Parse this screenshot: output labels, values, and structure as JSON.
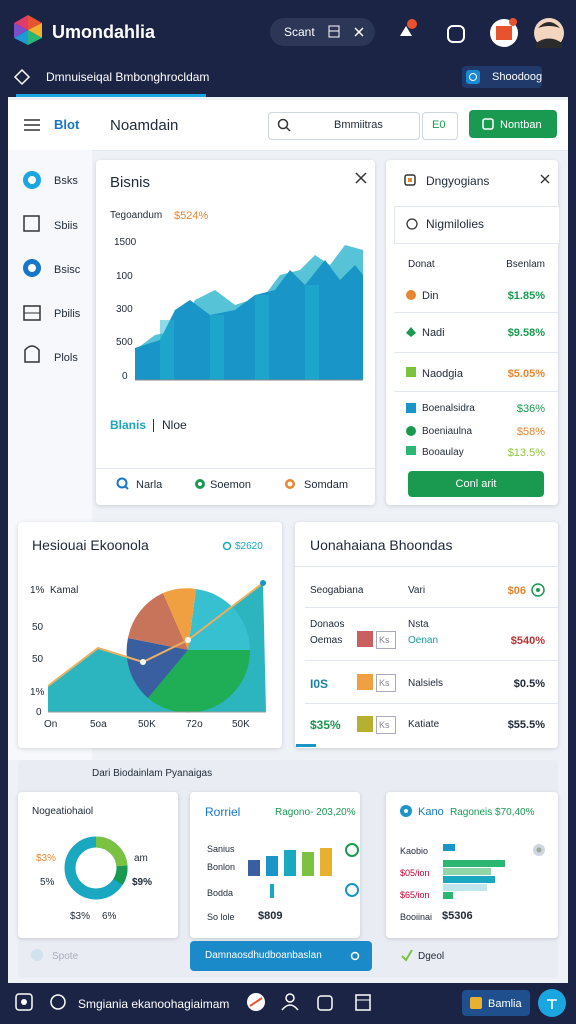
{
  "header": {
    "app_title": "Umondahlia",
    "search": "Scant"
  },
  "breadcrumb": {
    "text": "Dmnuiseiqal Bmbonghrocldam",
    "button": "Shoodoog"
  },
  "sidebar": {
    "title": "Blot",
    "items": [
      "Bsks",
      "Sbiis",
      "Bsisc",
      "Pbilis",
      "Plols"
    ]
  },
  "toolbar": {
    "page_title": "Noamdain",
    "search": "Bmmiitras",
    "count_button": "E0",
    "action_button": "Nontban"
  },
  "chart_card": {
    "title": "Bisnis",
    "subtitle_label": "Tegoandum",
    "subtitle_value": "$524%",
    "y_labels": [
      "1500",
      "100",
      "300",
      "500",
      "0"
    ],
    "legend": [
      "Blanis",
      "Nloe"
    ],
    "links": [
      "Narla",
      "Soemon",
      "Somdam"
    ]
  },
  "side_card": {
    "title": "Dngyogians",
    "subtitle": "Nigmilolies",
    "headers": [
      "Donat",
      "Bsenlam"
    ],
    "rows": [
      [
        "Din",
        "$1.85%"
      ],
      [
        "Nadi",
        "$9.58%"
      ],
      [
        "Naodgia",
        "$5.05%"
      ],
      [
        "Boenalsidra",
        "$36%"
      ],
      [
        "Boeniaulna",
        "$58%"
      ],
      [
        "Booaulay",
        "$13.5%"
      ]
    ],
    "button": "Conl arit"
  },
  "overview_card": {
    "title": "Hesiouai Ekoonola",
    "badge": "$2620",
    "y_labels": [
      "1%",
      "Kamal",
      "50",
      "50",
      "1%",
      "0"
    ],
    "x_labels": [
      "On",
      "5oa",
      "50K",
      "72o",
      "50K"
    ]
  },
  "details_card": {
    "title": "Uonahaiana Bhoondas",
    "rows": [
      {
        "label": "Seogabiana",
        "mid": "Vari",
        "value": "$06"
      },
      {
        "label": "Donaos",
        "sublabel": "Oemas",
        "tag": "Ks",
        "mid": "Nsta",
        "submid": "Oenan",
        "value": "$540%"
      },
      {
        "label": "I0S",
        "tag": "Ks",
        "mid": "Nalsiels",
        "value": "$0.5%"
      },
      {
        "label": "$35%",
        "tag": "Ks",
        "mid": "Katiate",
        "value": "$55.5%"
      }
    ]
  },
  "section": {
    "title": "Dari Biodainlam Pyanaigas",
    "donut_card": {
      "title": "Nogeatiohaiol",
      "labels": [
        "$3%",
        "5%",
        "$3%",
        "6%",
        "am",
        "$9%"
      ]
    },
    "bar_card": {
      "title": "Rorriel",
      "note": "Ragono- 203,20%",
      "labels": [
        "Sanius",
        "Bonlon",
        "Bodda",
        "So lole"
      ],
      "total": "$809"
    },
    "hbar_card": {
      "title": "Kano",
      "note": "Ragoneis $70,40%",
      "labels": [
        "Kaobio",
        "$05/ion",
        "$65/ion",
        "Booiinai"
      ],
      "total": "$5306"
    },
    "buttons": [
      "Spote",
      "Damnaosdhudboanbaslan",
      "Dgeol"
    ]
  },
  "nav": {
    "text": "Smgiania ekanoohagiaimam",
    "button": "Bamlia"
  }
}
